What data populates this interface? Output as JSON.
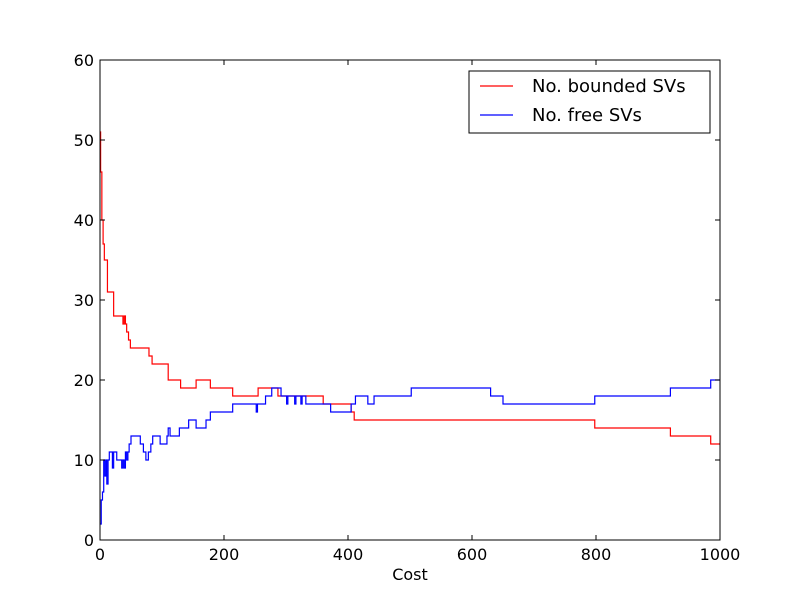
{
  "chart_data": {
    "type": "line",
    "title": "",
    "xlabel": "Cost",
    "ylabel": "",
    "xlim": [
      0,
      1000
    ],
    "ylim": [
      0,
      60
    ],
    "xticks": [
      0,
      200,
      400,
      600,
      800,
      1000
    ],
    "yticks": [
      0,
      10,
      20,
      30,
      40,
      50,
      60
    ],
    "grid": false,
    "legend_position": "top-right",
    "series": [
      {
        "name": "No. bounded SVs",
        "color": "#ff0000",
        "step": true,
        "points": [
          [
            0,
            51
          ],
          [
            1,
            46
          ],
          [
            3,
            40
          ],
          [
            5,
            37
          ],
          [
            7,
            35
          ],
          [
            10,
            35
          ],
          [
            12,
            31
          ],
          [
            18,
            31
          ],
          [
            22,
            28
          ],
          [
            35,
            28
          ],
          [
            37,
            27
          ],
          [
            39,
            28
          ],
          [
            41,
            27
          ],
          [
            43,
            26
          ],
          [
            46,
            25
          ],
          [
            49,
            24
          ],
          [
            78,
            24
          ],
          [
            79,
            23
          ],
          [
            82,
            23
          ],
          [
            84,
            22
          ],
          [
            108,
            22
          ],
          [
            110,
            20
          ],
          [
            128,
            20
          ],
          [
            130,
            19
          ],
          [
            153,
            19
          ],
          [
            155,
            20
          ],
          [
            176,
            20
          ],
          [
            178,
            19
          ],
          [
            212,
            19
          ],
          [
            214,
            18
          ],
          [
            253,
            18
          ],
          [
            255,
            19
          ],
          [
            285,
            19
          ],
          [
            287,
            18
          ],
          [
            358,
            18
          ],
          [
            360,
            17
          ],
          [
            403,
            17
          ],
          [
            405,
            16
          ],
          [
            408,
            16
          ],
          [
            410,
            15
          ],
          [
            796,
            15
          ],
          [
            798,
            14
          ],
          [
            918,
            14
          ],
          [
            920,
            13
          ],
          [
            983,
            13
          ],
          [
            985,
            12
          ],
          [
            1000,
            12
          ]
        ]
      },
      {
        "name": "No. free SVs",
        "color": "#0000ff",
        "step": true,
        "points": [
          [
            0,
            2
          ],
          [
            2,
            5
          ],
          [
            4,
            6
          ],
          [
            6,
            10
          ],
          [
            8,
            8
          ],
          [
            10,
            10
          ],
          [
            11,
            7
          ],
          [
            13,
            10
          ],
          [
            15,
            11
          ],
          [
            18,
            11
          ],
          [
            20,
            9
          ],
          [
            22,
            11
          ],
          [
            25,
            11
          ],
          [
            27,
            10
          ],
          [
            33,
            10
          ],
          [
            35,
            9
          ],
          [
            37,
            10
          ],
          [
            39,
            9
          ],
          [
            41,
            11
          ],
          [
            43,
            10
          ],
          [
            45,
            11
          ],
          [
            47,
            12
          ],
          [
            50,
            13
          ],
          [
            62,
            13
          ],
          [
            65,
            12
          ],
          [
            70,
            11
          ],
          [
            74,
            10
          ],
          [
            78,
            11
          ],
          [
            82,
            12
          ],
          [
            85,
            13
          ],
          [
            95,
            13
          ],
          [
            97,
            12
          ],
          [
            106,
            12
          ],
          [
            108,
            13
          ],
          [
            110,
            14
          ],
          [
            113,
            13
          ],
          [
            125,
            13
          ],
          [
            128,
            14
          ],
          [
            140,
            14
          ],
          [
            143,
            15
          ],
          [
            152,
            15
          ],
          [
            155,
            14
          ],
          [
            168,
            14
          ],
          [
            171,
            15
          ],
          [
            175,
            15
          ],
          [
            178,
            16
          ],
          [
            212,
            16
          ],
          [
            214,
            17
          ],
          [
            250,
            17
          ],
          [
            252,
            16
          ],
          [
            254,
            17
          ],
          [
            265,
            17
          ],
          [
            267,
            18
          ],
          [
            275,
            18
          ],
          [
            277,
            19
          ],
          [
            290,
            19
          ],
          [
            292,
            18
          ],
          [
            300,
            18
          ],
          [
            301,
            17
          ],
          [
            303,
            18
          ],
          [
            312,
            18
          ],
          [
            314,
            17
          ],
          [
            316,
            18
          ],
          [
            323,
            18
          ],
          [
            324,
            17
          ],
          [
            326,
            18
          ],
          [
            330,
            18
          ],
          [
            332,
            17
          ],
          [
            370,
            17
          ],
          [
            372,
            16
          ],
          [
            403,
            16
          ],
          [
            405,
            17
          ],
          [
            410,
            17
          ],
          [
            412,
            18
          ],
          [
            430,
            18
          ],
          [
            432,
            17
          ],
          [
            440,
            17
          ],
          [
            442,
            18
          ],
          [
            500,
            18
          ],
          [
            502,
            19
          ],
          [
            628,
            19
          ],
          [
            630,
            18
          ],
          [
            648,
            18
          ],
          [
            650,
            17
          ],
          [
            796,
            17
          ],
          [
            798,
            18
          ],
          [
            918,
            18
          ],
          [
            920,
            19
          ],
          [
            983,
            19
          ],
          [
            985,
            20
          ],
          [
            1000,
            20
          ]
        ]
      }
    ]
  }
}
